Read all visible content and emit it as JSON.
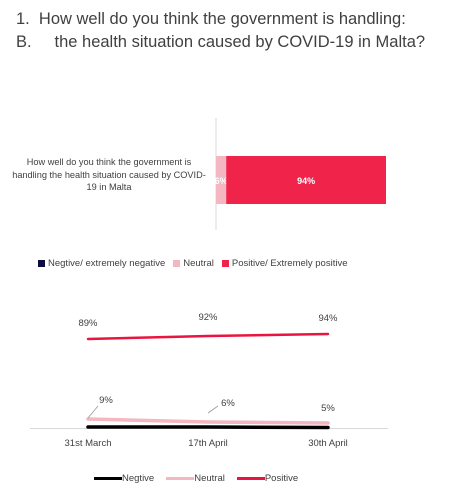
{
  "title_line1": "1.  How well do you think the government is handling:",
  "title_line2": "B.     the health situation caused by COVID-19 in Malta?",
  "chart_data": [
    {
      "type": "bar",
      "orientation": "horizontal",
      "stacked": true,
      "categories": [
        "How well do you think the government is handling the health situation caused by COVID-19 in Malta"
      ],
      "series": [
        {
          "name": "Negtive/ extremely negative",
          "values": [
            0
          ],
          "label": "",
          "color": "#0d0d3f"
        },
        {
          "name": "Neutral",
          "values": [
            6
          ],
          "label": "6%",
          "color": "#f4b6c0"
        },
        {
          "name": "Positive/ Extremely positive",
          "values": [
            94
          ],
          "label": "94%",
          "color": "#f0234a"
        }
      ],
      "xlim": [
        0,
        100
      ],
      "legend": "bottom"
    },
    {
      "type": "line",
      "categories": [
        "31st March",
        "17th April",
        "30th April"
      ],
      "series": [
        {
          "name": "Negtive",
          "values": [
            1,
            1,
            0.5
          ],
          "labels": [
            "",
            "",
            ""
          ],
          "color": "#000000"
        },
        {
          "name": "Neutral",
          "values": [
            9,
            6,
            5
          ],
          "labels": [
            "9%",
            "6%",
            "5%"
          ],
          "color": "#f4b6c0"
        },
        {
          "name": "Positive",
          "values": [
            89,
            92,
            94
          ],
          "labels": [
            "89%",
            "92%",
            "94%"
          ],
          "color": "#e8163f"
        }
      ],
      "legend": "bottom"
    }
  ]
}
